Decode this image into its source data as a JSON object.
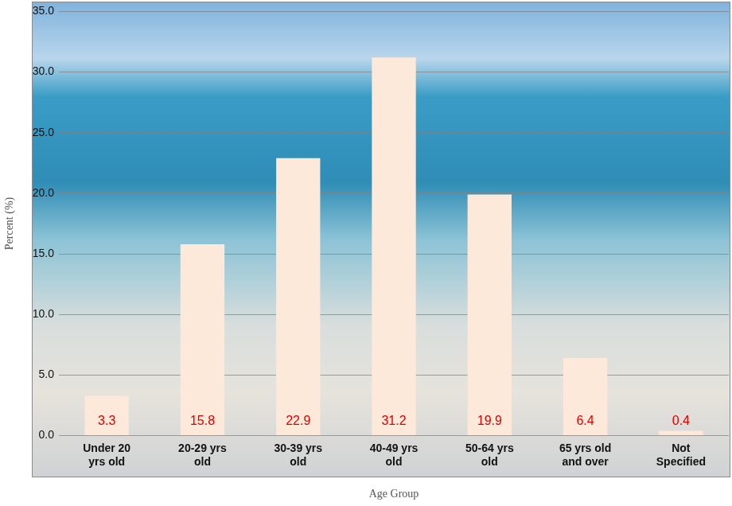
{
  "chart_data": {
    "type": "bar",
    "x_label": "Age Group",
    "y_label": "Percent (%)",
    "categories": [
      "Under 20 yrs old",
      "20-29 yrs old",
      "30-39 yrs old",
      "40-49 yrs old",
      "50-64 yrs old",
      "65 yrs old and over",
      "Not Specified"
    ],
    "values": [
      3.3,
      15.8,
      22.9,
      31.2,
      19.9,
      6.4,
      0.4
    ],
    "color": "#fde9d9",
    "ylim": [
      0,
      35
    ],
    "yticks": [
      {
        "value": 0,
        "label": "0.0"
      },
      {
        "value": 5,
        "label": "5.0"
      },
      {
        "value": 10,
        "label": "10.0"
      },
      {
        "value": 15,
        "label": "15.0"
      },
      {
        "value": 20,
        "label": "20.0"
      },
      {
        "value": 25,
        "label": "25.0"
      },
      {
        "value": 30,
        "label": "30.0"
      },
      {
        "value": 35,
        "label": "35.0"
      }
    ],
    "grid": true,
    "data_labels": true
  }
}
